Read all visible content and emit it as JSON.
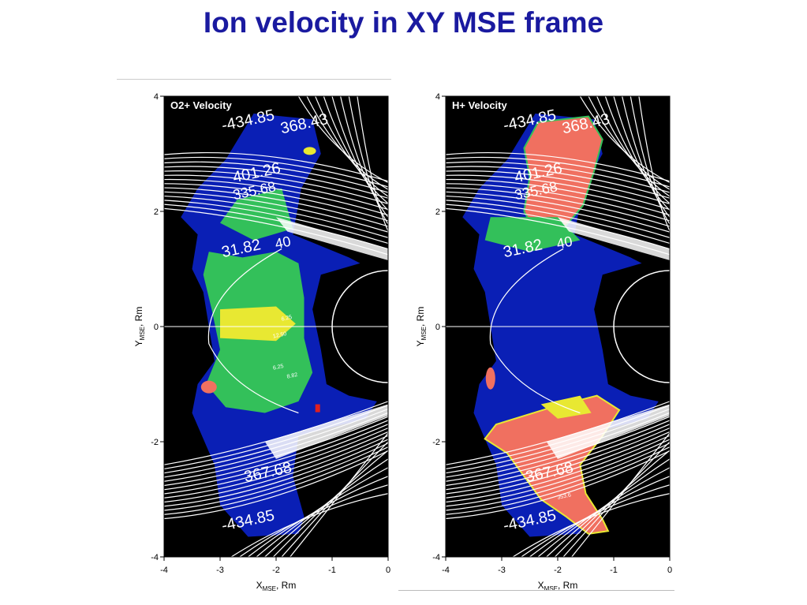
{
  "slide": {
    "title": "Ion velocity  in XY MSE frame"
  },
  "chart_data": [
    {
      "type": "heatmap",
      "panel_label": "O2+ Velocity",
      "xlabel": "X",
      "xlabel_sub": "MSE",
      "xlabel_unit": ", Rm",
      "ylabel": "Y",
      "ylabel_sub": "MSE",
      "ylabel_unit": ", Rm",
      "xlim": [
        -4,
        0
      ],
      "ylim": [
        -4,
        4
      ],
      "xticks": [
        -4,
        -3,
        -2,
        -1,
        0
      ],
      "yticks": [
        -4,
        -2,
        0,
        2,
        4
      ],
      "contour_labels": [
        "-434.85",
        "368.43",
        "401.26",
        "335.68",
        "31.82",
        "40",
        "6.25",
        "12.50",
        "8.82",
        "6.25",
        "367.68",
        "-434.85"
      ],
      "colors": {
        "background": "#000000",
        "low": "#0a1fb5",
        "mid_low": "#2a8fe0",
        "mid": "#33c05a",
        "mid_high": "#e8e832",
        "high": "#f07060",
        "lines": "#ffffff"
      }
    },
    {
      "type": "heatmap",
      "panel_label": "H+ Velocity",
      "xlabel": "X",
      "xlabel_sub": "MSE",
      "xlabel_unit": ", Rm",
      "ylabel": "Y",
      "ylabel_sub": "MSE",
      "ylabel_unit": ", Rm",
      "xlim": [
        -4,
        0
      ],
      "ylim": [
        -4,
        4
      ],
      "xticks": [
        -4,
        -3,
        -2,
        -1,
        0
      ],
      "yticks": [
        -4,
        -2,
        0,
        2,
        4
      ],
      "contour_labels": [
        "-434.85",
        "368.43",
        "401.26",
        "335.68",
        "31.82",
        "40",
        "367.68",
        "353.6",
        "-434.85"
      ],
      "colors": {
        "background": "#000000",
        "low": "#0a1fb5",
        "mid_low": "#2a8fe0",
        "mid": "#33c05a",
        "mid_high": "#e8e832",
        "high": "#f07060",
        "lines": "#ffffff"
      }
    }
  ]
}
